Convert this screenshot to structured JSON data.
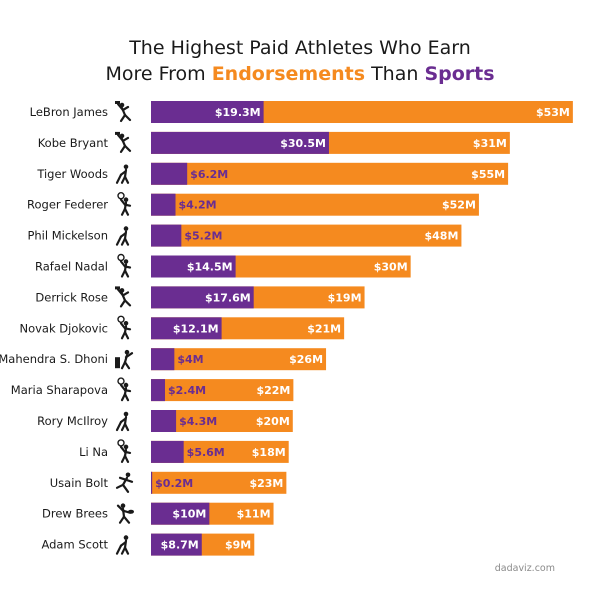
{
  "title": {
    "line1": "The Highest Paid Athletes Who Earn",
    "line2_prefix": "More From ",
    "line2_endorsements": "Endorsements",
    "line2_middle": " Than ",
    "line2_sports": "Sports"
  },
  "credit": "dadaviz.com",
  "colors": {
    "sports": "#6a2d91",
    "endorsements": "#f58a1f",
    "label_on_dark": "#ffffff",
    "label_on_orange": "#ffffff",
    "label_small_purple": "#6a2d91",
    "icon": "#1a1a1a"
  },
  "chart_data": {
    "type": "bar",
    "orientation": "horizontal",
    "stacked": true,
    "units": "USD millions",
    "categories": [
      "LeBron James",
      "Kobe Bryant",
      "Tiger Woods",
      "Roger Federer",
      "Phil Mickelson",
      "Rafael Nadal",
      "Derrick Rose",
      "Novak Djokovic",
      "Mahendra S. Dhoni",
      "Maria Sharapova",
      "Rory McIlroy",
      "Li Na",
      "Usain Bolt",
      "Drew Brees",
      "Adam Scott"
    ],
    "sports_icons": [
      "basketball-icon",
      "basketball-icon",
      "golf-icon",
      "tennis-icon",
      "golf-icon",
      "tennis-icon",
      "basketball-icon",
      "tennis-icon",
      "cricket-icon",
      "tennis-icon",
      "golf-icon",
      "tennis-icon",
      "running-icon",
      "football-icon",
      "golf-icon"
    ],
    "series": [
      {
        "name": "Sports",
        "values": [
          19.3,
          30.5,
          6.2,
          4.2,
          5.2,
          14.5,
          17.6,
          12.1,
          4,
          2.4,
          4.3,
          5.6,
          0.2,
          10,
          8.7
        ],
        "labels": [
          "$19.3M",
          "$30.5M",
          "$6.2M",
          "$4.2M",
          "$5.2M",
          "$14.5M",
          "$17.6M",
          "$12.1M",
          "$4M",
          "$2.4M",
          "$4.3M",
          "$5.6M",
          "$0.2M",
          "$10M",
          "$8.7M"
        ]
      },
      {
        "name": "Endorsements",
        "values": [
          53,
          31,
          55,
          52,
          48,
          30,
          19,
          21,
          26,
          22,
          20,
          18,
          23,
          11,
          9
        ],
        "labels": [
          "$53M",
          "$31M",
          "$55M",
          "$52M",
          "$48M",
          "$30M",
          "$19M",
          "$21M",
          "$26M",
          "$22M",
          "$20M",
          "$18M",
          "$23M",
          "$11M",
          "$9M"
        ]
      }
    ]
  }
}
